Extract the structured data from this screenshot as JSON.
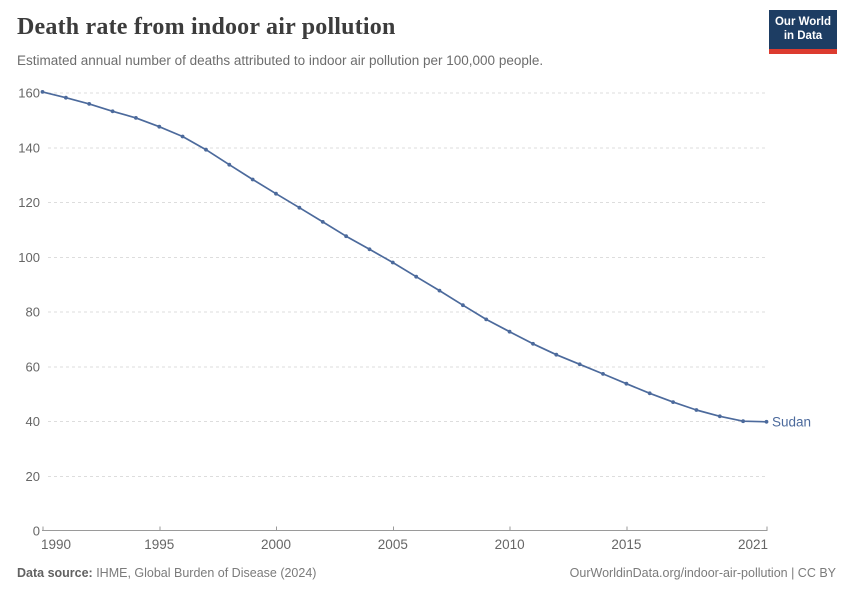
{
  "header": {
    "title": "Death rate from indoor air pollution",
    "subtitle": "Estimated annual number of deaths attributed to indoor air pollution per 100,000 people.",
    "logo": {
      "line1": "Our World",
      "line2": "in Data",
      "bg_color": "#1d3d63",
      "accent_color": "#dc3b2f"
    }
  },
  "chart_data": {
    "type": "line",
    "title": "Death rate from indoor air pollution",
    "xlabel": "",
    "ylabel": "",
    "xlim": [
      1990,
      2021
    ],
    "ylim": [
      0,
      160
    ],
    "x_ticks": [
      1990,
      1995,
      2000,
      2005,
      2010,
      2015,
      2021
    ],
    "y_ticks": [
      0,
      20,
      40,
      60,
      80,
      100,
      120,
      140,
      160
    ],
    "grid": "horizontal-dashed",
    "legend_position": "end-of-line-label",
    "x": [
      1990,
      1991,
      1992,
      1993,
      1994,
      1995,
      1996,
      1997,
      1998,
      1999,
      2000,
      2001,
      2002,
      2003,
      2004,
      2005,
      2006,
      2007,
      2008,
      2009,
      2010,
      2011,
      2012,
      2013,
      2014,
      2015,
      2016,
      2017,
      2018,
      2019,
      2020,
      2021
    ],
    "series": [
      {
        "name": "Sudan",
        "color": "#4c6a9c",
        "values": [
          160.4,
          158.3,
          156.0,
          153.3,
          150.9,
          147.7,
          144.1,
          139.3,
          133.8,
          128.4,
          123.2,
          118.1,
          112.9,
          107.7,
          102.9,
          98.1,
          92.9,
          87.8,
          82.5,
          77.3,
          72.8,
          68.4,
          64.4,
          60.9,
          57.4,
          53.8,
          50.3,
          47.1,
          44.2,
          41.9,
          40.1,
          39.9
        ]
      }
    ],
    "axis_colors": {
      "tick_label": "#666666",
      "gridline": "#dddddd",
      "axis_line": "#9a9a9a"
    }
  },
  "footer": {
    "source_label": "Data source:",
    "source_text": " IHME, Global Burden of Disease (2024)",
    "credit": "OurWorldinData.org/indoor-air-pollution | CC BY"
  }
}
